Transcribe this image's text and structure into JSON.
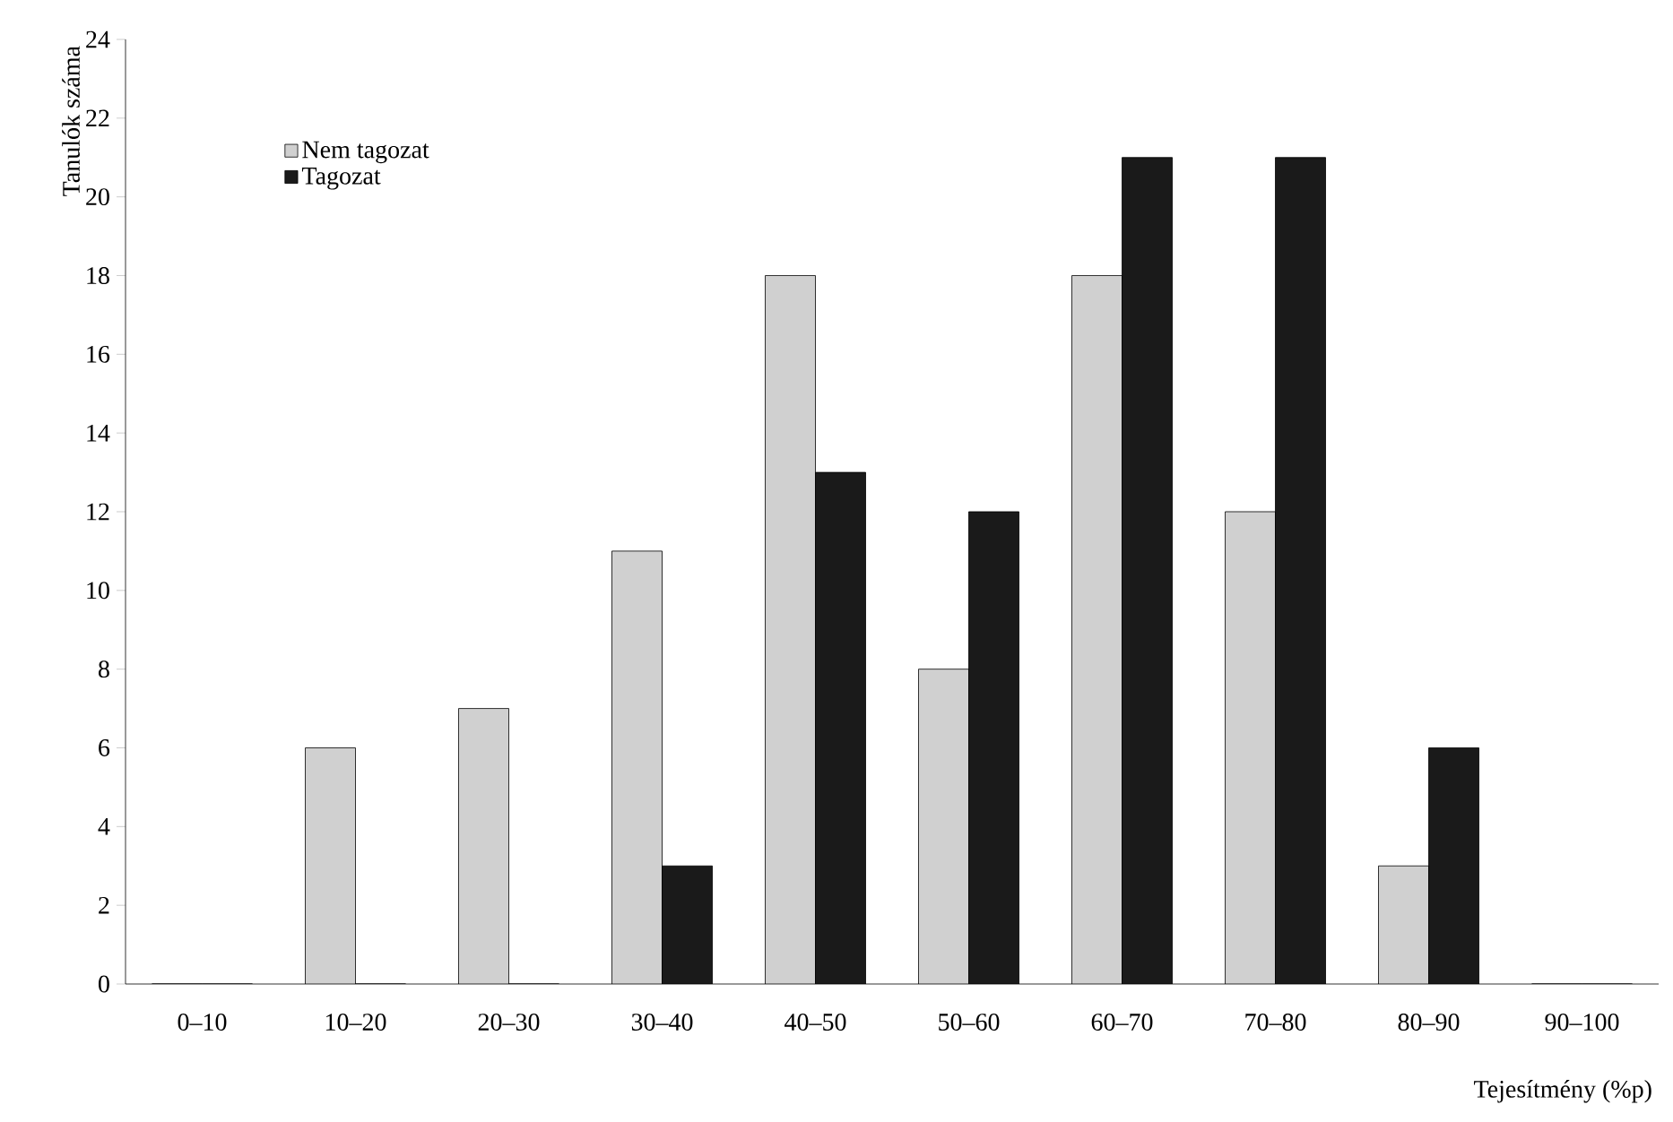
{
  "chart_data": {
    "type": "bar",
    "xlabel": "Tejesítmény (%p)",
    "ylabel": "Tanulók száma",
    "categories": [
      "0–10",
      "10–20",
      "20–30",
      "30–40",
      "40–50",
      "50–60",
      "60–70",
      "70–80",
      "80–90",
      "90–100"
    ],
    "series": [
      {
        "name": "Nem tagozat",
        "color": "#d0d0d0",
        "values": [
          0,
          6,
          7,
          11,
          18,
          8,
          18,
          12,
          3,
          0
        ]
      },
      {
        "name": "Tagozat",
        "color": "#1a1a1a",
        "values": [
          0,
          0,
          0,
          3,
          13,
          12,
          21,
          21,
          6,
          0
        ]
      }
    ],
    "ylim": [
      0,
      24
    ],
    "yticks": [
      0,
      2,
      4,
      6,
      8,
      10,
      12,
      14,
      16,
      18,
      20,
      22,
      24
    ],
    "legend": "top left",
    "grid": false
  }
}
